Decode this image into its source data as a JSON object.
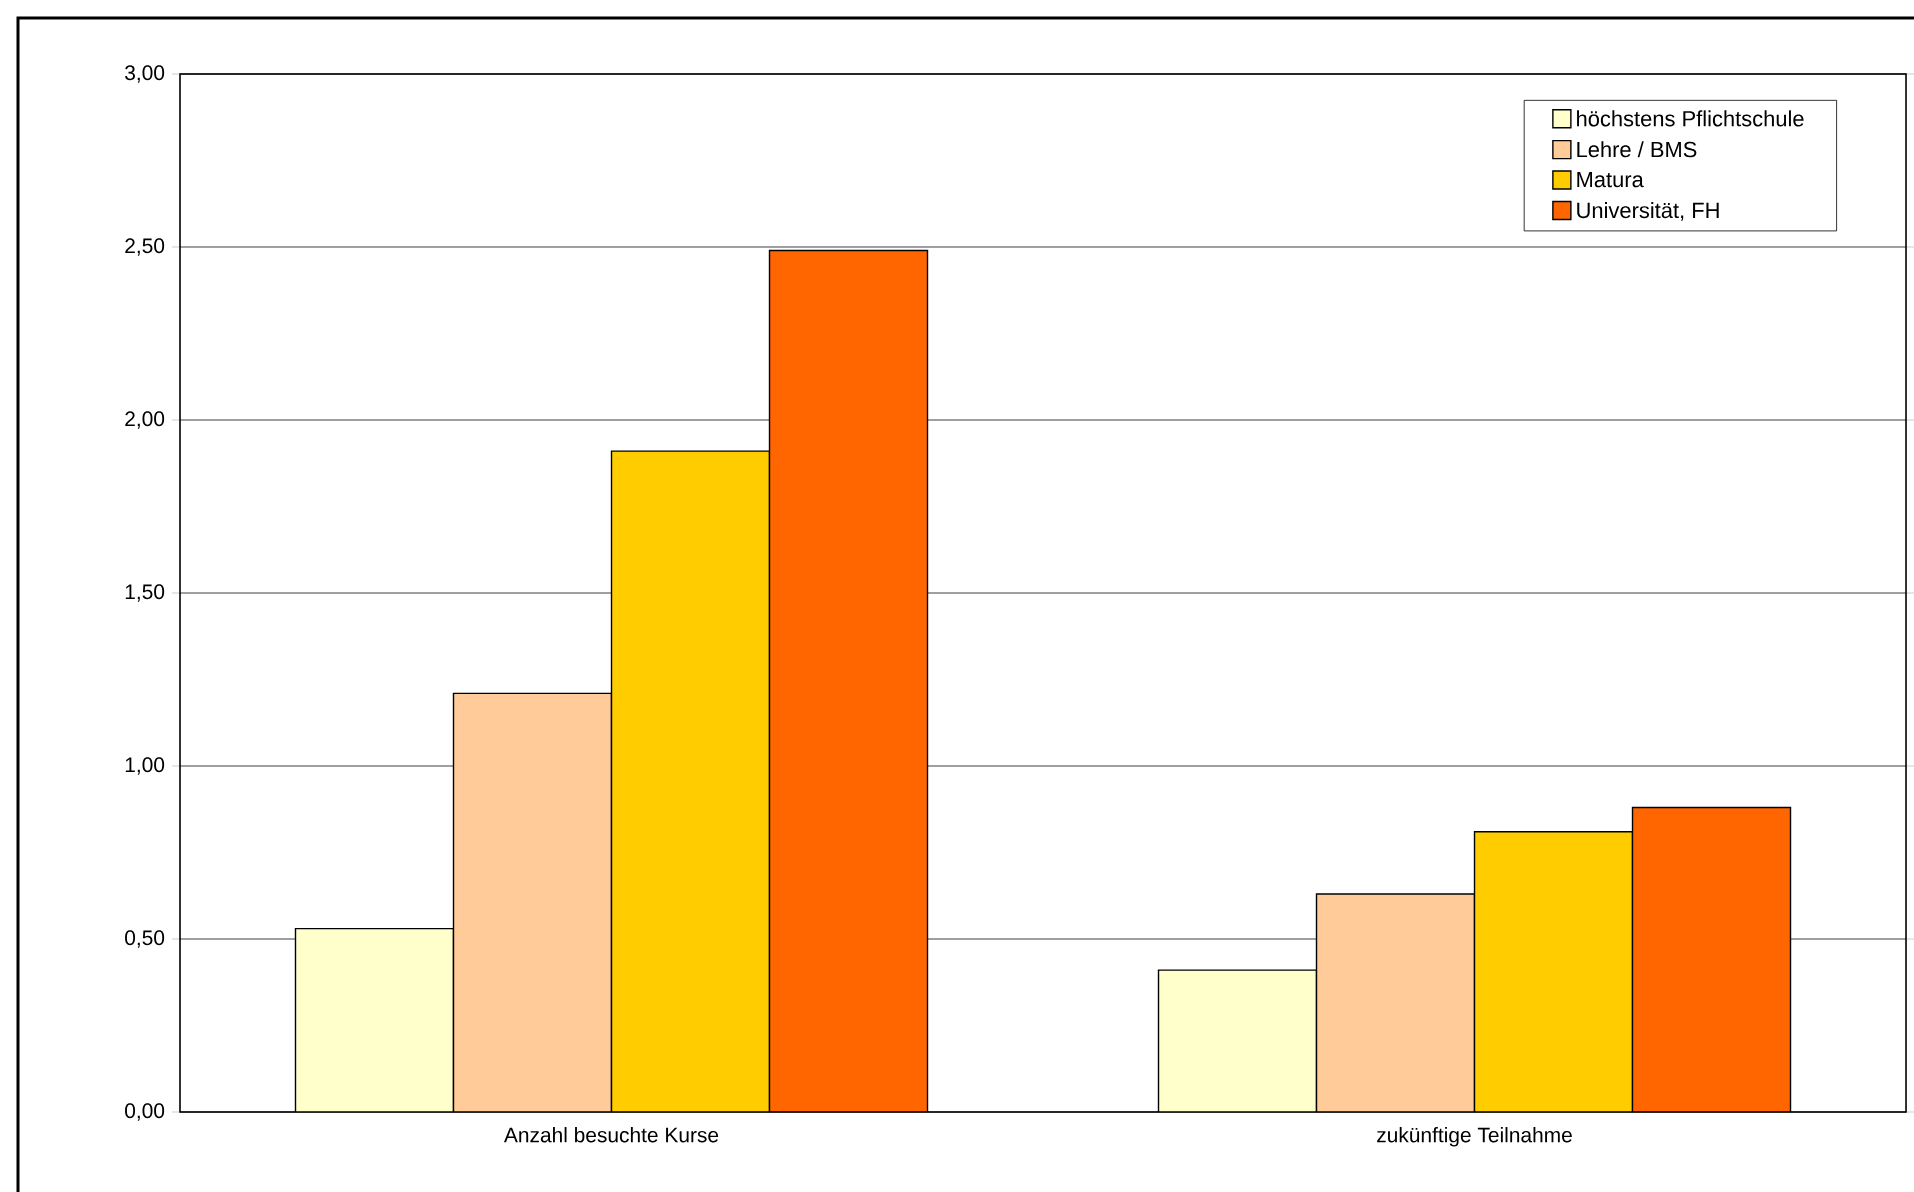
{
  "chart_data": {
    "type": "bar",
    "categories": [
      "Anzahl besuchte Kurse",
      "zukünftige Teilnahme"
    ],
    "series": [
      {
        "name": "höchstens Pflichtschule",
        "color": "#ffffcc",
        "values": [
          0.53,
          0.41
        ]
      },
      {
        "name": "Lehre / BMS",
        "color": "#ffcc99",
        "values": [
          1.21,
          0.63
        ]
      },
      {
        "name": "Matura",
        "color": "#ffcc00",
        "values": [
          1.91,
          0.81
        ]
      },
      {
        "name": "Universität, FH",
        "color": "#ff6600",
        "values": [
          2.49,
          0.88
        ]
      }
    ],
    "ylim": [
      0,
      3
    ],
    "yticks": [
      {
        "value": 0,
        "label": "0,00"
      },
      {
        "value": 0.5,
        "label": "0,50"
      },
      {
        "value": 1,
        "label": "1,00"
      },
      {
        "value": 1.5,
        "label": "1,50"
      },
      {
        "value": 2,
        "label": "2,00"
      },
      {
        "value": 2.5,
        "label": "2,50"
      },
      {
        "value": 3,
        "label": "3,00"
      }
    ],
    "grid": "y",
    "legend": "top right"
  }
}
